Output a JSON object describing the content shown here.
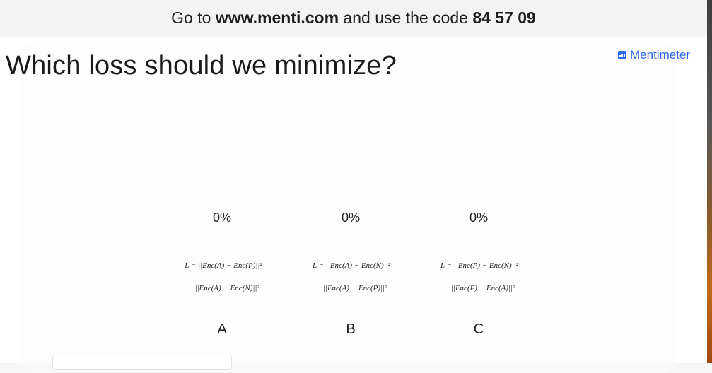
{
  "header": {
    "prefix": "Go to ",
    "url": "www.menti.com",
    "middle": " and use the code ",
    "code": "84 57 09"
  },
  "question": "Which loss should we minimize?",
  "brand": "Mentimeter",
  "chart_data": {
    "type": "bar",
    "categories": [
      "A",
      "B",
      "C"
    ],
    "values": [
      0,
      0,
      0
    ],
    "value_labels": [
      "0%",
      "0%",
      "0%"
    ],
    "formulas": [
      [
        "L = ||Enc(A) − Enc(P)||²",
        "− ||Enc(A) − Enc(N)||²"
      ],
      [
        "L = ||Enc(A) − Enc(N)||²",
        "− ||Enc(A) − Enc(P)||²"
      ],
      [
        "L = ||Enc(P) − Enc(N)||²",
        "− ||Enc(P) − Enc(A)||²"
      ]
    ]
  }
}
